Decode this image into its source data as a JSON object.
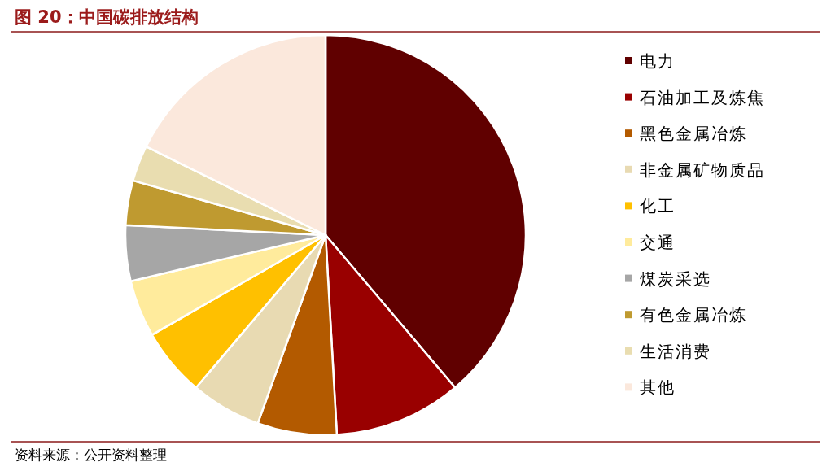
{
  "chart_data": {
    "type": "pie",
    "title": "图 20：中国碳排放结构",
    "categories": [
      "电力",
      "石油加工及炼焦",
      "黑色金属冶炼",
      "非金属矿物质品",
      "化工",
      "交通",
      "煤炭采选",
      "有色金属冶炼",
      "生活消费",
      "其他"
    ],
    "values": [
      38.8,
      10.3,
      6.4,
      5.7,
      5.5,
      4.6,
      4.5,
      3.6,
      2.9,
      17.7
    ],
    "colors": [
      "#600000",
      "#990000",
      "#b35a00",
      "#e8dab2",
      "#ffc000",
      "#ffeb9c",
      "#a6a6a6",
      "#bf9a30",
      "#e9ddb0",
      "#fbe8dc"
    ],
    "legend": "right",
    "annotations": [
      "资料来源：公开资料整理"
    ]
  }
}
